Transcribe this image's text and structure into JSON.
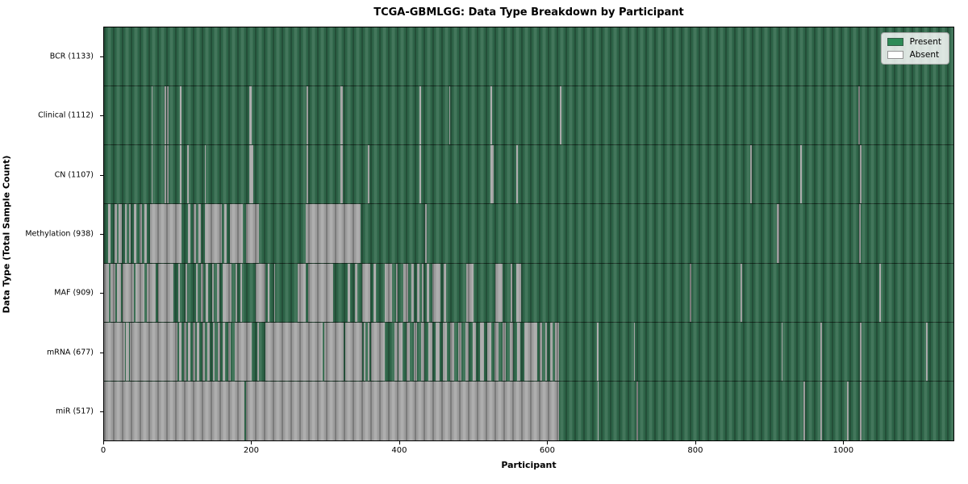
{
  "chart_data": {
    "type": "heatmap",
    "title": "TCGA-GBMLGG: Data Type Breakdown by Participant",
    "xlabel": "Participant",
    "ylabel": "Data Type (Total Sample Count)",
    "n_participants": 1133,
    "xticks": [
      0,
      200,
      400,
      600,
      800,
      1000
    ],
    "legend_position": "upper right",
    "grid": false,
    "legend": [
      {
        "label": "Present",
        "color": "#2e8b57"
      },
      {
        "label": "Absent",
        "color": "#ffffff"
      }
    ],
    "colors": {
      "present_fill": "#2e8b57",
      "absent_fill": "#ffffff",
      "plot_present_render": "#30694b",
      "plot_absent_render": "#a6a6a6"
    },
    "rows": [
      {
        "label": "BCR (1133)",
        "present_count": 1133,
        "absent_segments": []
      },
      {
        "label": "Clinical (1112)",
        "present_count": 1112,
        "absent_segments": [
          [
            64,
            66
          ],
          [
            82,
            84
          ],
          [
            85,
            87
          ],
          [
            103,
            105
          ],
          [
            197,
            200
          ],
          [
            274,
            276
          ],
          [
            320,
            323
          ],
          [
            427,
            429
          ],
          [
            467,
            469
          ],
          [
            523,
            525
          ],
          [
            617,
            619
          ],
          [
            1021,
            1023
          ]
        ]
      },
      {
        "label": "CN (1107)",
        "present_count": 1107,
        "absent_segments": [
          [
            64,
            66
          ],
          [
            82,
            84
          ],
          [
            85,
            87
          ],
          [
            103,
            105
          ],
          [
            113,
            115
          ],
          [
            136,
            138
          ],
          [
            197,
            202
          ],
          [
            274,
            276
          ],
          [
            320,
            323
          ],
          [
            357,
            359
          ],
          [
            427,
            429
          ],
          [
            523,
            527
          ],
          [
            558,
            560
          ],
          [
            875,
            877
          ],
          [
            943,
            945
          ],
          [
            1023,
            1025
          ]
        ]
      },
      {
        "label": "Methylation (938)",
        "present_count": 938,
        "absent_segments": [
          [
            6,
            9
          ],
          [
            14,
            17
          ],
          [
            20,
            24
          ],
          [
            28,
            31
          ],
          [
            34,
            36
          ],
          [
            40,
            44
          ],
          [
            48,
            51
          ],
          [
            55,
            58
          ],
          [
            62,
            105
          ],
          [
            114,
            117
          ],
          [
            121,
            124
          ],
          [
            128,
            131
          ],
          [
            136,
            160
          ],
          [
            163,
            166
          ],
          [
            170,
            188
          ],
          [
            192,
            210
          ],
          [
            273,
            347
          ],
          [
            435,
            437
          ],
          [
            911,
            914
          ],
          [
            1022,
            1024
          ]
        ]
      },
      {
        "label": "MAF (909)",
        "present_count": 909,
        "absent_segments": [
          [
            0,
            7
          ],
          [
            9,
            15
          ],
          [
            17,
            23
          ],
          [
            25,
            40
          ],
          [
            43,
            55
          ],
          [
            58,
            70
          ],
          [
            73,
            94
          ],
          [
            101,
            103
          ],
          [
            110,
            112
          ],
          [
            124,
            127
          ],
          [
            131,
            134
          ],
          [
            138,
            141
          ],
          [
            146,
            149
          ],
          [
            153,
            156
          ],
          [
            160,
            173
          ],
          [
            178,
            180
          ],
          [
            185,
            187
          ],
          [
            205,
            218
          ],
          [
            222,
            224
          ],
          [
            230,
            232
          ],
          [
            262,
            273
          ],
          [
            276,
            310
          ],
          [
            330,
            333
          ],
          [
            340,
            343
          ],
          [
            350,
            360
          ],
          [
            365,
            368
          ],
          [
            380,
            390
          ],
          [
            395,
            398
          ],
          [
            405,
            412
          ],
          [
            416,
            419
          ],
          [
            424,
            427
          ],
          [
            430,
            433
          ],
          [
            437,
            440
          ],
          [
            445,
            455
          ],
          [
            460,
            463
          ],
          [
            490,
            500
          ],
          [
            530,
            540
          ],
          [
            550,
            553
          ],
          [
            558,
            565
          ],
          [
            793,
            795
          ],
          [
            862,
            864
          ],
          [
            1050,
            1052
          ]
        ]
      },
      {
        "label": "mRNA (677)",
        "present_count": 677,
        "absent_segments": [
          [
            0,
            28
          ],
          [
            29,
            34
          ],
          [
            35,
            96
          ],
          [
            96,
            99
          ],
          [
            102,
            105
          ],
          [
            108,
            111
          ],
          [
            114,
            117
          ],
          [
            120,
            123
          ],
          [
            126,
            129
          ],
          [
            133,
            136
          ],
          [
            140,
            143
          ],
          [
            147,
            150
          ],
          [
            154,
            157
          ],
          [
            161,
            164
          ],
          [
            168,
            171
          ],
          [
            177,
            200
          ],
          [
            208,
            210
          ],
          [
            218,
            296
          ],
          [
            298,
            324
          ],
          [
            327,
            350
          ],
          [
            352,
            354
          ],
          [
            357,
            359
          ],
          [
            361,
            380
          ],
          [
            393,
            398
          ],
          [
            399,
            404
          ],
          [
            409,
            414
          ],
          [
            419,
            424
          ],
          [
            429,
            434
          ],
          [
            439,
            444
          ],
          [
            449,
            454
          ],
          [
            459,
            464
          ],
          [
            469,
            474
          ],
          [
            479,
            484
          ],
          [
            489,
            494
          ],
          [
            499,
            504
          ],
          [
            509,
            514
          ],
          [
            519,
            524
          ],
          [
            529,
            534
          ],
          [
            539,
            544
          ],
          [
            549,
            554
          ],
          [
            559,
            564
          ],
          [
            569,
            587
          ],
          [
            590,
            593
          ],
          [
            597,
            600
          ],
          [
            604,
            607
          ],
          [
            610,
            616
          ],
          [
            667,
            669
          ],
          [
            717,
            719
          ],
          [
            917,
            919
          ],
          [
            970,
            972
          ],
          [
            1023,
            1025
          ],
          [
            1113,
            1115
          ]
        ]
      },
      {
        "label": "miR (517)",
        "present_count": 517,
        "absent_segments": [
          [
            0,
            190
          ],
          [
            192,
            616
          ],
          [
            668,
            670
          ],
          [
            721,
            723
          ],
          [
            947,
            949
          ],
          [
            970,
            972
          ],
          [
            1006,
            1008
          ],
          [
            1023,
            1026
          ]
        ]
      }
    ]
  }
}
